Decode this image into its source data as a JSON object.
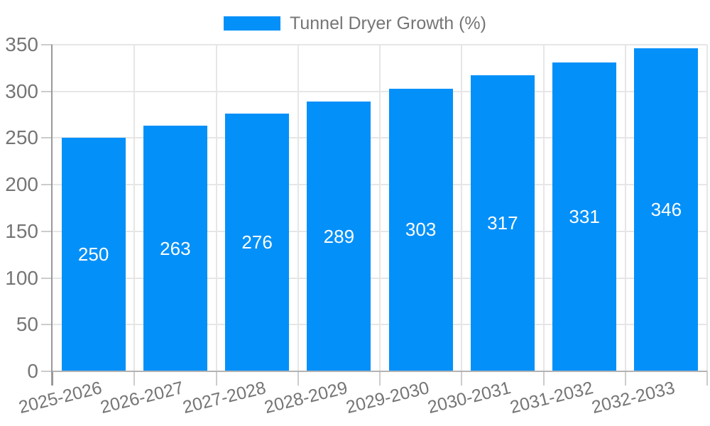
{
  "chart_data": {
    "type": "bar",
    "title": "",
    "series_name": "Tunnel Dryer Growth (%)",
    "categories": [
      "2025-2026",
      "2026-2027",
      "2027-2028",
      "2028-2029",
      "2029-2030",
      "2030-2031",
      "2031-2032",
      "2032-2033"
    ],
    "values": [
      250,
      263,
      276,
      289,
      303,
      317,
      331,
      346
    ],
    "xlabel": "",
    "ylabel": "",
    "ylim": [
      0,
      350
    ],
    "yticks": [
      0,
      50,
      100,
      150,
      200,
      250,
      300,
      350
    ],
    "grid": true,
    "legend_position": "top-center",
    "bar_width_fraction": 0.78,
    "colors": {
      "bar": "#0490f9",
      "bar_label": "#ffffff",
      "axis_text": "#757575",
      "grid_line": "#e6e6e6",
      "axis_line": "#b3b3b3",
      "y_axis_line": "#999999",
      "tick": "#cccccc",
      "background": "#ffffff"
    }
  }
}
